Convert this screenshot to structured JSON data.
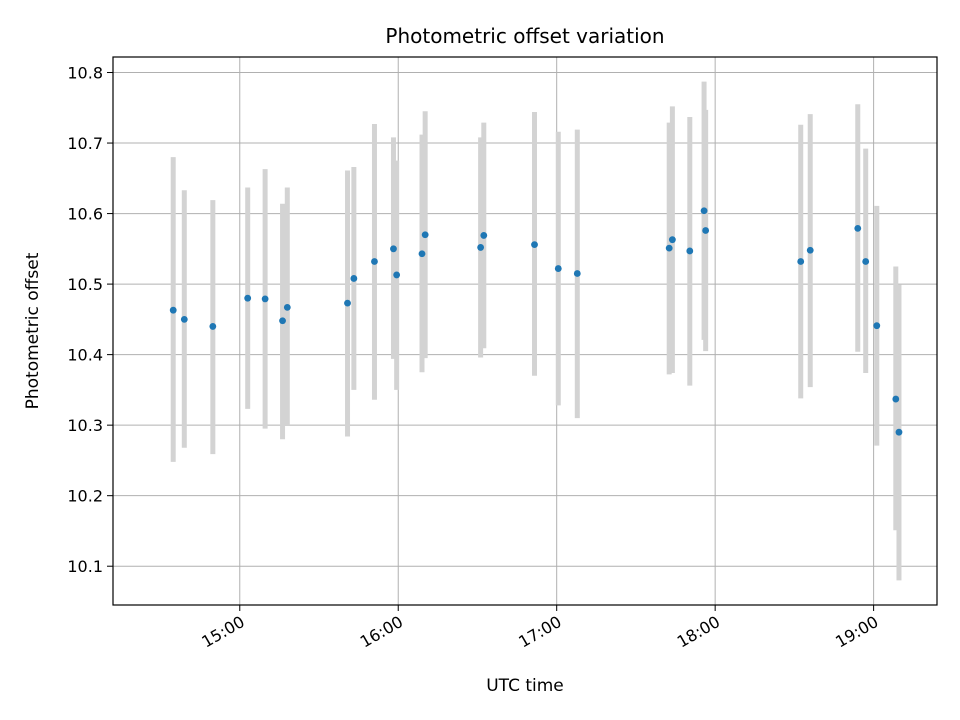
{
  "chart_data": {
    "type": "scatter",
    "title": "Photometric offset variation",
    "xlabel": "UTC time",
    "ylabel": "Photometric offset",
    "grid": true,
    "x_axis": {
      "unit": "hours",
      "range": [
        14.2,
        19.4
      ],
      "ticks": [
        {
          "value": 15,
          "label": "15:00"
        },
        {
          "value": 16,
          "label": "16:00"
        },
        {
          "value": 17,
          "label": "17:00"
        },
        {
          "value": 18,
          "label": "18:00"
        },
        {
          "value": 19,
          "label": "19:00"
        }
      ]
    },
    "y_axis": {
      "range": [
        10.045,
        10.822
      ],
      "ticks": [
        {
          "value": 10.1,
          "label": "10.1"
        },
        {
          "value": 10.2,
          "label": "10.2"
        },
        {
          "value": 10.3,
          "label": "10.3"
        },
        {
          "value": 10.4,
          "label": "10.4"
        },
        {
          "value": 10.5,
          "label": "10.5"
        },
        {
          "value": 10.6,
          "label": "10.6"
        },
        {
          "value": 10.7,
          "label": "10.7"
        },
        {
          "value": 10.8,
          "label": "10.8"
        }
      ]
    },
    "point_color": "#1f77b4",
    "errorbar_color": "#d3d3d3",
    "points": [
      {
        "x": 14.58,
        "y": 10.463,
        "ylow": 10.248,
        "yhigh": 10.68
      },
      {
        "x": 14.65,
        "y": 10.45,
        "ylow": 10.268,
        "yhigh": 10.633
      },
      {
        "x": 14.83,
        "y": 10.44,
        "ylow": 10.259,
        "yhigh": 10.619
      },
      {
        "x": 15.05,
        "y": 10.48,
        "ylow": 10.323,
        "yhigh": 10.637
      },
      {
        "x": 15.16,
        "y": 10.479,
        "ylow": 10.295,
        "yhigh": 10.663
      },
      {
        "x": 15.27,
        "y": 10.448,
        "ylow": 10.28,
        "yhigh": 10.614
      },
      {
        "x": 15.3,
        "y": 10.467,
        "ylow": 10.3,
        "yhigh": 10.637
      },
      {
        "x": 15.68,
        "y": 10.473,
        "ylow": 10.284,
        "yhigh": 10.661
      },
      {
        "x": 15.72,
        "y": 10.508,
        "ylow": 10.35,
        "yhigh": 10.666
      },
      {
        "x": 15.85,
        "y": 10.532,
        "ylow": 10.336,
        "yhigh": 10.727
      },
      {
        "x": 15.97,
        "y": 10.55,
        "ylow": 10.394,
        "yhigh": 10.708
      },
      {
        "x": 15.99,
        "y": 10.513,
        "ylow": 10.35,
        "yhigh": 10.675
      },
      {
        "x": 16.15,
        "y": 10.543,
        "ylow": 10.375,
        "yhigh": 10.712
      },
      {
        "x": 16.17,
        "y": 10.57,
        "ylow": 10.395,
        "yhigh": 10.745
      },
      {
        "x": 16.52,
        "y": 10.552,
        "ylow": 10.396,
        "yhigh": 10.708
      },
      {
        "x": 16.54,
        "y": 10.569,
        "ylow": 10.409,
        "yhigh": 10.729
      },
      {
        "x": 16.86,
        "y": 10.556,
        "ylow": 10.37,
        "yhigh": 10.744
      },
      {
        "x": 17.01,
        "y": 10.522,
        "ylow": 10.328,
        "yhigh": 10.716
      },
      {
        "x": 17.13,
        "y": 10.515,
        "ylow": 10.31,
        "yhigh": 10.719
      },
      {
        "x": 17.71,
        "y": 10.551,
        "ylow": 10.372,
        "yhigh": 10.729
      },
      {
        "x": 17.73,
        "y": 10.563,
        "ylow": 10.374,
        "yhigh": 10.752
      },
      {
        "x": 17.84,
        "y": 10.547,
        "ylow": 10.356,
        "yhigh": 10.737
      },
      {
        "x": 17.93,
        "y": 10.604,
        "ylow": 10.421,
        "yhigh": 10.787
      },
      {
        "x": 17.94,
        "y": 10.576,
        "ylow": 10.405,
        "yhigh": 10.747
      },
      {
        "x": 18.54,
        "y": 10.532,
        "ylow": 10.338,
        "yhigh": 10.726
      },
      {
        "x": 18.6,
        "y": 10.548,
        "ylow": 10.354,
        "yhigh": 10.741
      },
      {
        "x": 18.9,
        "y": 10.579,
        "ylow": 10.404,
        "yhigh": 10.755
      },
      {
        "x": 18.95,
        "y": 10.532,
        "ylow": 10.374,
        "yhigh": 10.692
      },
      {
        "x": 19.02,
        "y": 10.441,
        "ylow": 10.271,
        "yhigh": 10.611
      },
      {
        "x": 19.14,
        "y": 10.337,
        "ylow": 10.151,
        "yhigh": 10.525
      },
      {
        "x": 19.16,
        "y": 10.29,
        "ylow": 10.08,
        "yhigh": 10.499
      }
    ]
  }
}
